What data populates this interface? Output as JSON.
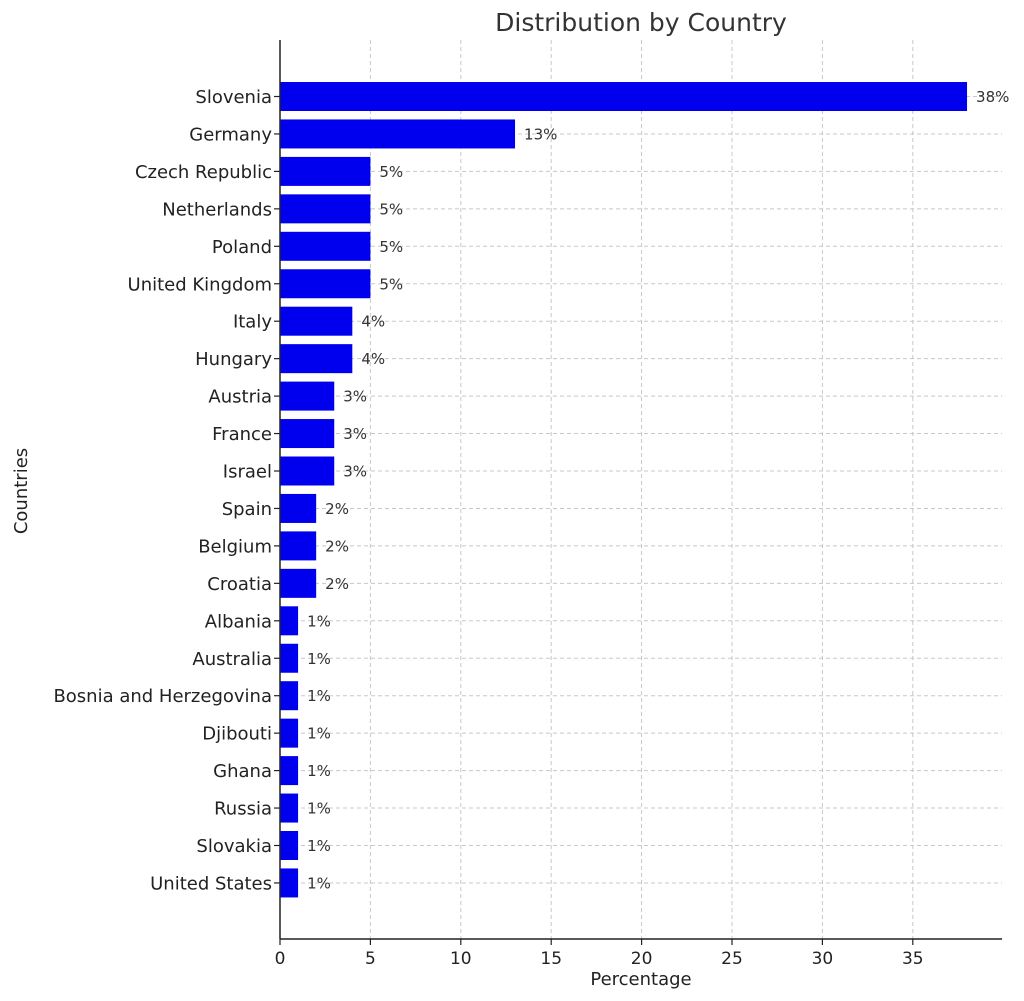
{
  "chart_data": {
    "type": "bar",
    "orientation": "horizontal",
    "title": "Distribution by Country",
    "xlabel": "Percentage",
    "ylabel": "Countries",
    "xlim": [
      0,
      40
    ],
    "xticks": [
      0,
      5,
      10,
      15,
      20,
      25,
      30,
      35
    ],
    "grid": true,
    "bar_color": "#0000ee",
    "categories": [
      "Slovenia",
      "Germany",
      "Czech Republic",
      "Netherlands",
      "Poland",
      "United Kingdom",
      "Italy",
      "Hungary",
      "Austria",
      "France",
      "Israel",
      "Spain",
      "Belgium",
      "Croatia",
      "Albania",
      "Australia",
      "Bosnia and Herzegovina",
      "Djibouti",
      "Ghana",
      "Russia",
      "Slovakia",
      "United States"
    ],
    "values": [
      38,
      13,
      5,
      5,
      5,
      5,
      4,
      4,
      3,
      3,
      3,
      2,
      2,
      2,
      1,
      1,
      1,
      1,
      1,
      1,
      1,
      1
    ],
    "data_labels": [
      "38%",
      "13%",
      "5%",
      "5%",
      "5%",
      "5%",
      "4%",
      "4%",
      "3%",
      "3%",
      "3%",
      "2%",
      "2%",
      "2%",
      "1%",
      "1%",
      "1%",
      "1%",
      "1%",
      "1%",
      "1%",
      "1%"
    ]
  }
}
